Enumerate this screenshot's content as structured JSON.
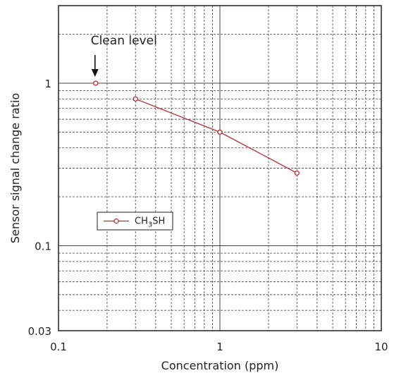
{
  "chart_data": {
    "type": "line",
    "xlabel": "Concentration (ppm)",
    "ylabel": "Sensor signal change ratio",
    "xscale": "log",
    "yscale": "log",
    "xlim": [
      0.1,
      10
    ],
    "ylim": [
      0.03,
      3
    ],
    "x_ticks": [
      {
        "value": 0.1,
        "label": "0.1"
      },
      {
        "value": 1,
        "label": "1"
      },
      {
        "value": 10,
        "label": "10"
      }
    ],
    "y_ticks": [
      {
        "value": 0.03,
        "label": "0.03"
      },
      {
        "value": 0.1,
        "label": "0.1"
      },
      {
        "value": 1,
        "label": "1"
      }
    ],
    "grid": true,
    "legend_position": "lower-left",
    "series": [
      {
        "name": "CH3SH",
        "name_main": "CH",
        "name_sub": "3",
        "name_tail": "SH",
        "color": "#c0282d",
        "points": [
          {
            "x": 0.3,
            "y": 0.8
          },
          {
            "x": 1,
            "y": 0.5
          },
          {
            "x": 3,
            "y": 0.28
          }
        ]
      }
    ],
    "annotation": {
      "text": "Clean level",
      "point": {
        "x": 0.17,
        "y": 1.0
      },
      "color": "#c0282d"
    }
  }
}
